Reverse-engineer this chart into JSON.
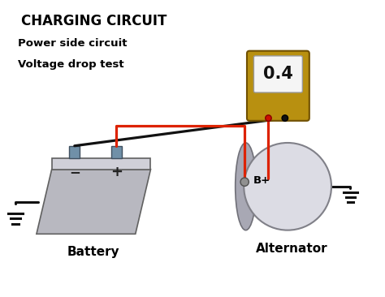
{
  "title": "CHARGING CIRCUIT",
  "subtitle_line1": "Power side circuit",
  "subtitle_line2": "Voltage drop test",
  "label_battery": "Battery",
  "label_alternator": "Alternator",
  "label_bp": "B+",
  "meter_value": "0.4",
  "bg_color": "#ffffff",
  "title_color": "#000000",
  "subtitle_color": "#000000",
  "meter_body_color": "#b89010",
  "meter_screen_color": "#f5f5f5",
  "wire_red_color": "#dd2200",
  "wire_black_color": "#111111",
  "alternator_main_color": "#dcdce4",
  "alternator_side_color": "#a0a0aa",
  "battery_front_color": "#b8b8c0",
  "battery_top_color": "#d0d0d8",
  "battery_right_color": "#909098",
  "terminal_color": "#7090a8",
  "ground_color": "#111111"
}
